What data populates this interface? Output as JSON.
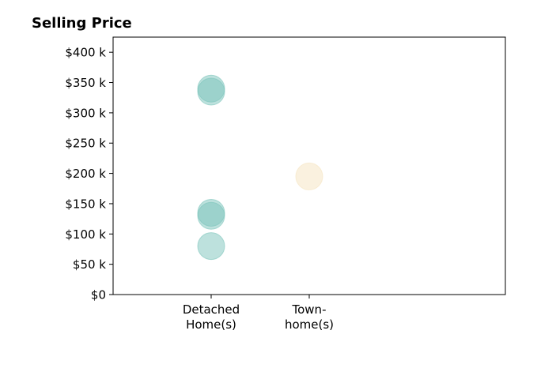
{
  "chart_data": {
    "type": "scatter",
    "title": "Selling Price",
    "xlabel": "",
    "ylabel": "",
    "categories": [
      "Detached\nHome(s)",
      "Town-\nhome(s)"
    ],
    "xlim": [
      -1,
      3
    ],
    "ylim": [
      0,
      425000
    ],
    "y_ticks": [
      0,
      50000,
      100000,
      150000,
      200000,
      250000,
      300000,
      350000,
      400000
    ],
    "y_tick_labels": [
      "$0",
      "$50 k",
      "$100 k",
      "$150 k",
      "$200 k",
      "$250 k",
      "$300 k",
      "$350 k",
      "$400 k"
    ],
    "grid": false,
    "legend": "none",
    "series": [
      {
        "category": "Detached\nHome(s)",
        "color": "#7cc4bb",
        "values": [
          340000,
          335000,
          135000,
          130000,
          80000
        ]
      },
      {
        "category": "Town-\nhome(s)",
        "color": "#f5e4c0",
        "values": [
          195000
        ]
      }
    ]
  }
}
